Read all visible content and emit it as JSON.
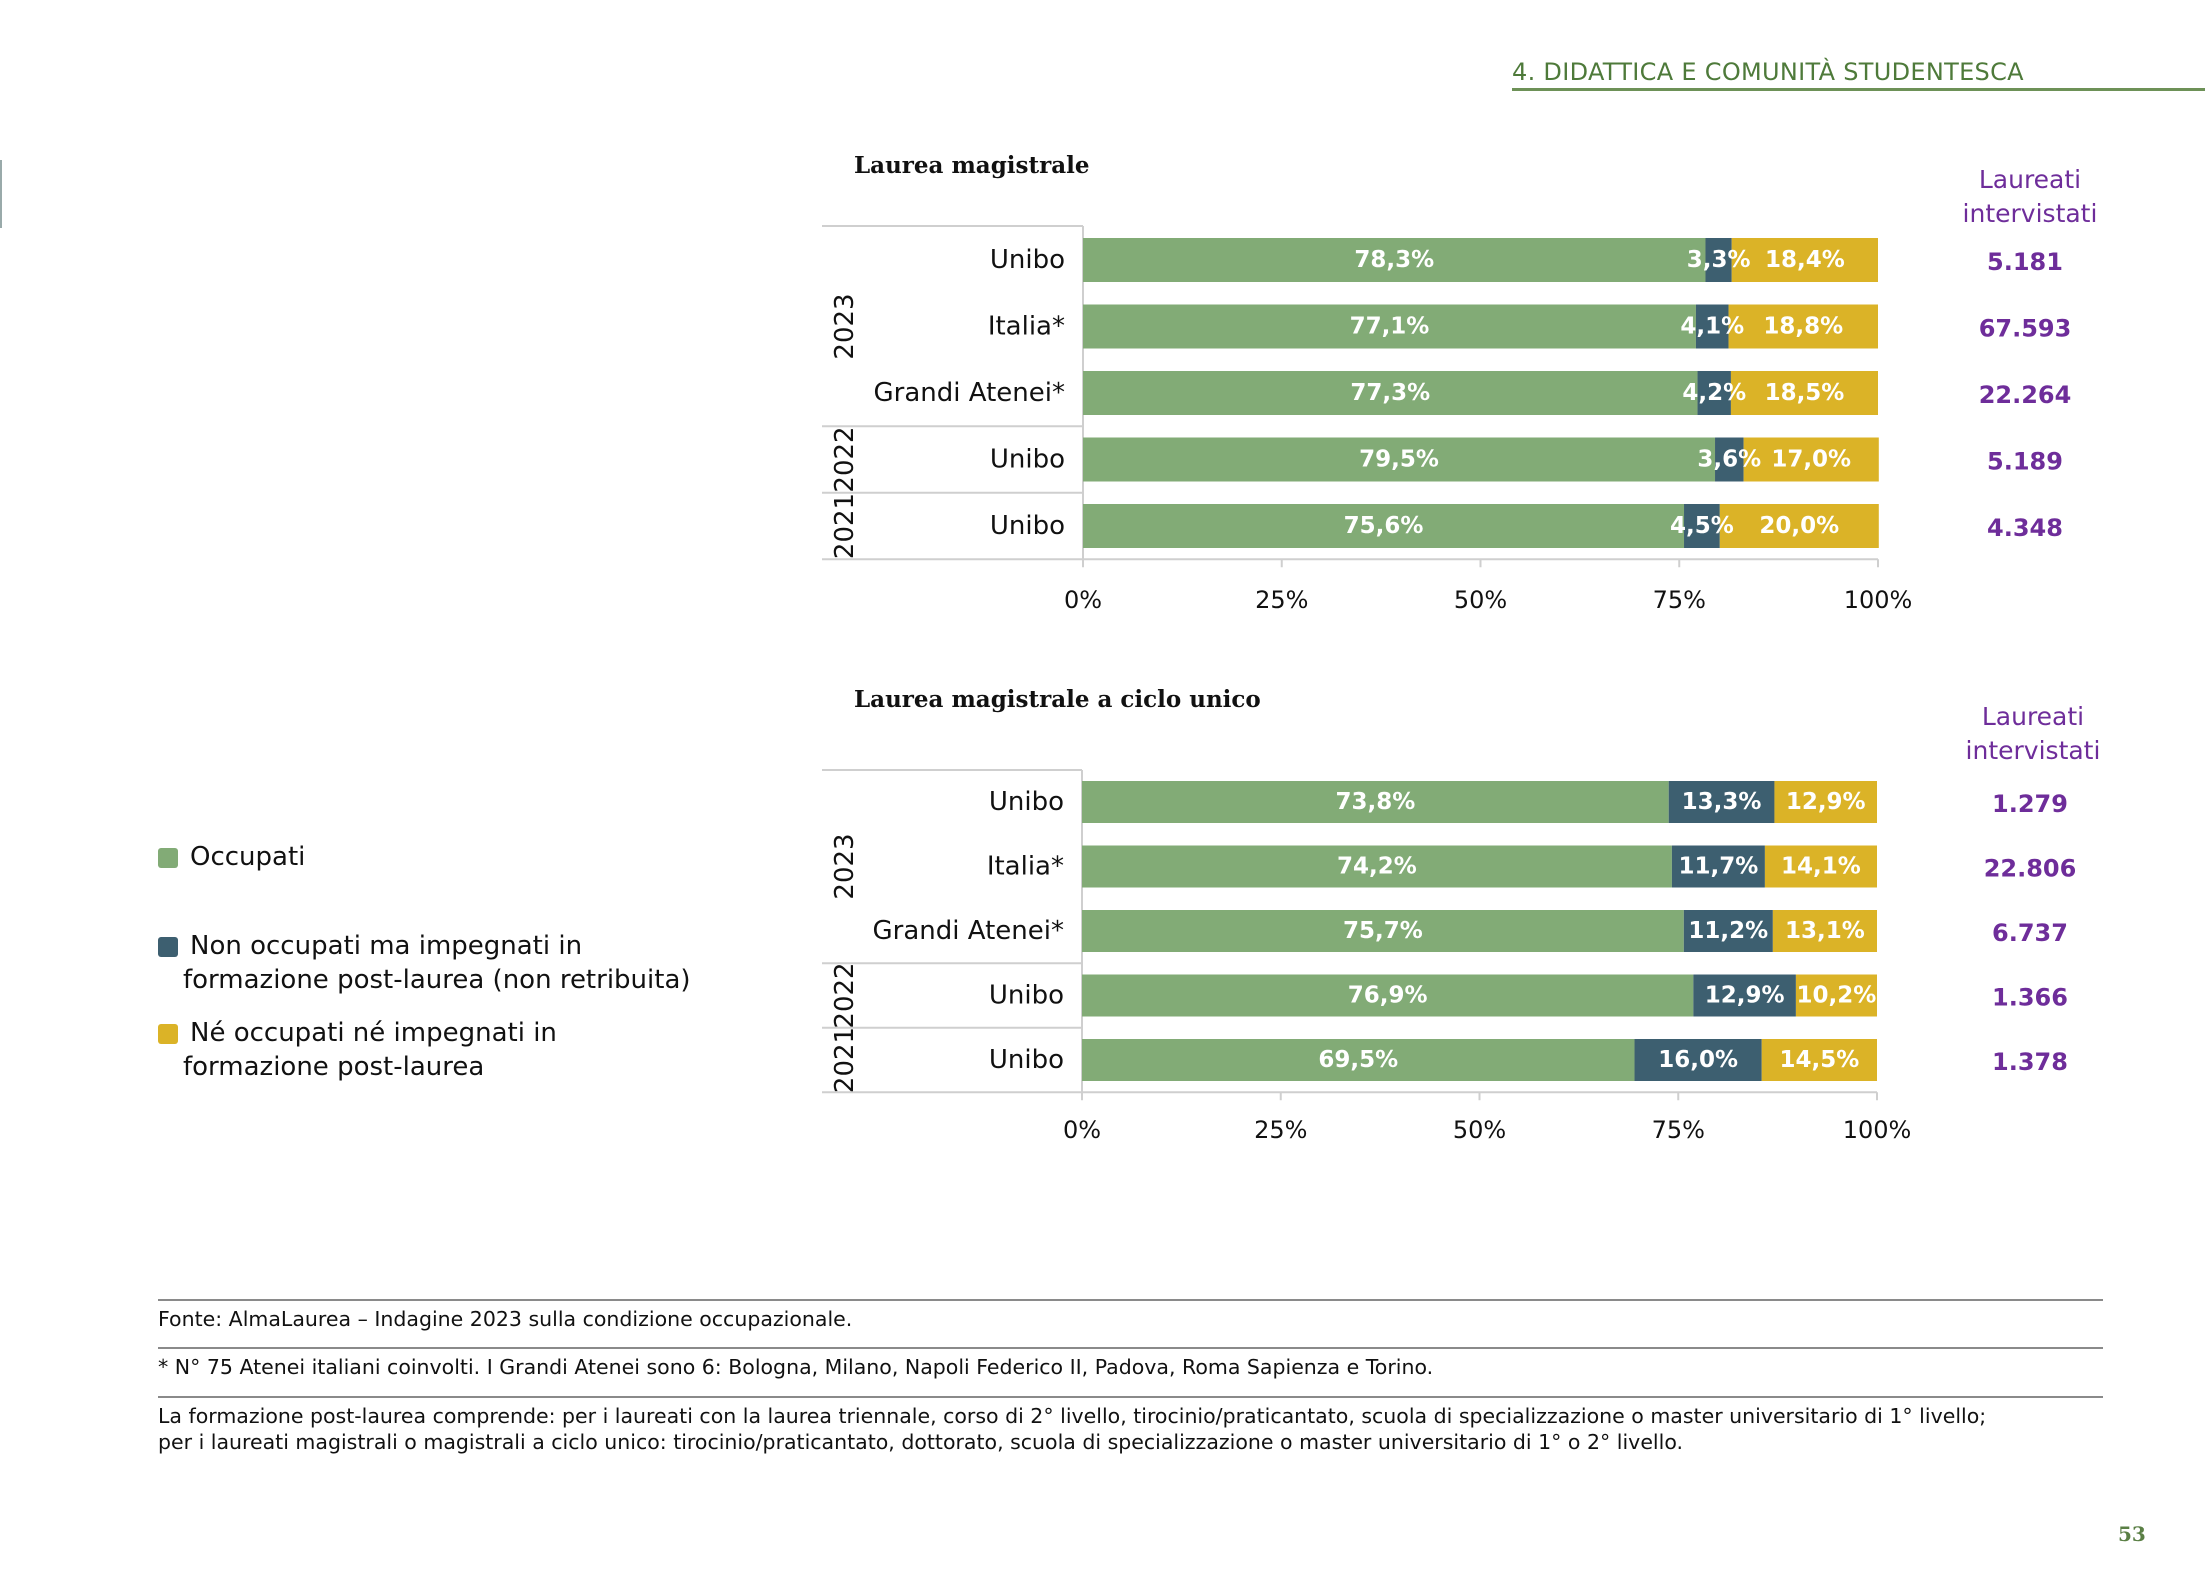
{
  "header": {
    "section": "4. DIDATTICA E COMUNITÀ STUDENTESCA"
  },
  "page_number": "53",
  "colors": {
    "occupati": "#82ab76",
    "non_occupati_formazione": "#3d5f70",
    "ne_occupati": "#dbb327",
    "respondents": "#6e2d9a",
    "accent": "#5a7f45"
  },
  "legend": {
    "items": [
      {
        "key": "occupati",
        "label_lines": [
          "Occupati"
        ]
      },
      {
        "key": "non_occupati_formazione",
        "label_lines": [
          "Non occupati ma impegnati in",
          "formazione post-laurea (non retribuita)"
        ]
      },
      {
        "key": "ne_occupati",
        "label_lines": [
          "Né occupati né impegnati in",
          "formazione post-laurea"
        ]
      }
    ]
  },
  "chart_data": [
    {
      "type": "bar",
      "stacked": true,
      "orientation": "horizontal",
      "title": "Laurea magistrale",
      "categories": [
        "Unibo",
        "Italia*",
        "Grandi Atenei*",
        "Unibo",
        "Unibo"
      ],
      "groups": [
        {
          "label": "2023",
          "rows": 3
        },
        {
          "label": "2022",
          "rows": 1
        },
        {
          "label": "2021",
          "rows": 1
        }
      ],
      "series": [
        {
          "key": "occupati",
          "values": [
            78.3,
            77.1,
            77.3,
            79.5,
            75.6
          ],
          "labels": [
            "78,3%",
            "77,1%",
            "77,3%",
            "79,5%",
            "75,6%"
          ]
        },
        {
          "key": "non_occupati_formazione",
          "values": [
            3.3,
            4.1,
            4.2,
            3.6,
            4.5
          ],
          "labels": [
            "3,3%",
            "4,1%",
            "4,2%",
            "3,6%",
            "4,5%"
          ]
        },
        {
          "key": "ne_occupati",
          "values": [
            18.4,
            18.8,
            18.5,
            17.0,
            20.0
          ],
          "labels": [
            "18,4%",
            "18,8%",
            "18,5%",
            "17,0%",
            "20,0%"
          ]
        }
      ],
      "xlim": [
        0,
        100
      ],
      "xticks": [
        "0%",
        "25%",
        "50%",
        "75%",
        "100%"
      ],
      "respondents_header": [
        "Laureati",
        "intervistati"
      ],
      "respondents": [
        "5.181",
        "67.593",
        "22.264",
        "5.189",
        "4.348"
      ]
    },
    {
      "type": "bar",
      "stacked": true,
      "orientation": "horizontal",
      "title": "Laurea magistrale a ciclo unico",
      "categories": [
        "Unibo",
        "Italia*",
        "Grandi Atenei*",
        "Unibo",
        "Unibo"
      ],
      "groups": [
        {
          "label": "2023",
          "rows": 3
        },
        {
          "label": "2022",
          "rows": 1
        },
        {
          "label": "2021",
          "rows": 1
        }
      ],
      "series": [
        {
          "key": "occupati",
          "values": [
            73.8,
            74.2,
            75.7,
            76.9,
            69.5
          ],
          "labels": [
            "73,8%",
            "74,2%",
            "75,7%",
            "76,9%",
            "69,5%"
          ]
        },
        {
          "key": "non_occupati_formazione",
          "values": [
            13.3,
            11.7,
            11.2,
            12.9,
            16.0
          ],
          "labels": [
            "13,3%",
            "11,7%",
            "11,2%",
            "12,9%",
            "16,0%"
          ]
        },
        {
          "key": "ne_occupati",
          "values": [
            12.9,
            14.1,
            13.1,
            10.2,
            14.5
          ],
          "labels": [
            "12,9%",
            "14,1%",
            "13,1%",
            "10,2%",
            "14,5%"
          ]
        }
      ],
      "xlim": [
        0,
        100
      ],
      "xticks": [
        "0%",
        "25%",
        "50%",
        "75%",
        "100%"
      ],
      "respondents_header": [
        "Laureati",
        "intervistati"
      ],
      "respondents": [
        "1.279",
        "22.806",
        "6.737",
        "1.366",
        "1.378"
      ]
    }
  ],
  "notes": {
    "fonte": "Fonte: AlmaLaurea – Indagine 2023 sulla condizione occupazionale.",
    "atenei": "* N° 75 Atenei italiani coinvolti. I Grandi Atenei sono 6: Bologna, Milano, Napoli Federico II, Padova, Roma Sapienza e Torino.",
    "formazione_lines": [
      "La formazione post-laurea comprende: per i laureati con la laurea triennale, corso di 2° livello, tirocinio/praticantato, scuola di specializzazione o master universitario di 1° livello;",
      "per i laureati magistrali o magistrali a ciclo unico: tirocinio/praticantato, dottorato, scuola di specializzazione o master universitario di 1° o 2° livello."
    ]
  }
}
